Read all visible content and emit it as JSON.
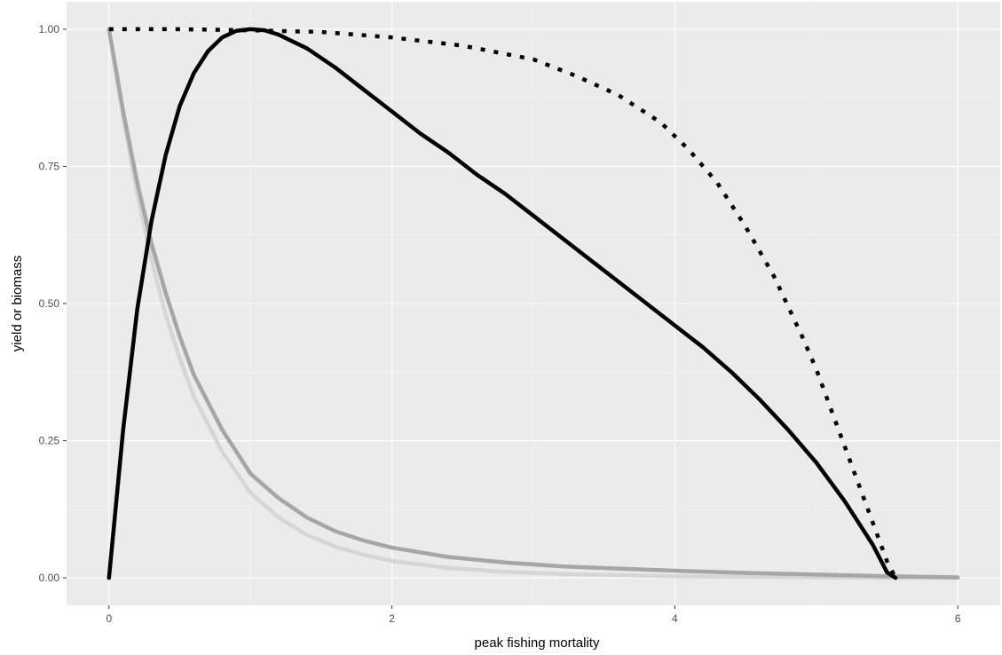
{
  "chart_data": {
    "type": "line",
    "title": "",
    "xlabel": "peak fishing mortality",
    "ylabel": "yield or biomass",
    "xlim": [
      -0.3,
      6.3
    ],
    "ylim": [
      -0.05,
      1.05
    ],
    "x_ticks": [
      0,
      2,
      4,
      6
    ],
    "x_tick_labels": [
      "0",
      "2",
      "4",
      "6"
    ],
    "y_ticks": [
      0,
      0.25,
      0.5,
      0.75,
      1
    ],
    "y_tick_labels": [
      "0.00",
      "0.25",
      "0.50",
      "0.75",
      "1.00"
    ],
    "grid": true,
    "legend": "none",
    "colors": {
      "panel": "#ebebeb",
      "grid_major": "#ffffff",
      "grid_minor": "#f5f5f5"
    },
    "series": [
      {
        "color": "#000000",
        "style": "solid",
        "x": [
          0,
          0.1,
          0.2,
          0.3,
          0.4,
          0.5,
          0.6,
          0.7,
          0.8,
          0.9,
          1.0,
          1.1,
          1.2,
          1.4,
          1.6,
          1.8,
          2.0,
          2.2,
          2.4,
          2.6,
          2.8,
          3.0,
          3.2,
          3.4,
          3.6,
          3.8,
          4.0,
          4.2,
          4.4,
          4.6,
          4.8,
          5.0,
          5.2,
          5.4,
          5.5,
          5.56
        ],
        "y": [
          0.0,
          0.27,
          0.49,
          0.65,
          0.77,
          0.86,
          0.92,
          0.96,
          0.985,
          0.997,
          1.0,
          0.998,
          0.99,
          0.965,
          0.93,
          0.89,
          0.85,
          0.81,
          0.775,
          0.735,
          0.7,
          0.66,
          0.62,
          0.58,
          0.54,
          0.5,
          0.46,
          0.42,
          0.375,
          0.325,
          0.27,
          0.21,
          0.14,
          0.06,
          0.01,
          0.0
        ]
      },
      {
        "color": "#000000",
        "style": "dotted",
        "x": [
          0,
          0.5,
          1.0,
          1.5,
          2.0,
          2.5,
          3.0,
          3.3,
          3.6,
          3.9,
          4.1,
          4.3,
          4.5,
          4.7,
          4.9,
          5.0,
          5.1,
          5.2,
          5.3,
          5.4,
          5.5,
          5.56
        ],
        "y": [
          1.0,
          1.0,
          0.998,
          0.995,
          0.985,
          0.97,
          0.945,
          0.915,
          0.88,
          0.83,
          0.78,
          0.72,
          0.64,
          0.55,
          0.44,
          0.38,
          0.31,
          0.24,
          0.17,
          0.1,
          0.03,
          0.0
        ]
      },
      {
        "color": "#a6a6a6",
        "style": "solid",
        "x": [
          0,
          0.1,
          0.2,
          0.3,
          0.4,
          0.5,
          0.6,
          0.8,
          1.0,
          1.2,
          1.4,
          1.6,
          1.8,
          2.0,
          2.4,
          2.8,
          3.2,
          3.6,
          4.0,
          4.5,
          5.0,
          5.5,
          6.0
        ],
        "y": [
          1.0,
          0.85,
          0.72,
          0.61,
          0.52,
          0.44,
          0.37,
          0.27,
          0.19,
          0.145,
          0.11,
          0.085,
          0.068,
          0.055,
          0.038,
          0.028,
          0.021,
          0.017,
          0.013,
          0.009,
          0.006,
          0.003,
          0.001
        ]
      },
      {
        "color": "#d6d6d6",
        "style": "solid",
        "x": [
          0,
          0.1,
          0.2,
          0.3,
          0.4,
          0.5,
          0.6,
          0.8,
          1.0,
          1.2,
          1.4,
          1.6,
          1.8,
          2.0,
          2.4,
          2.8,
          3.2,
          3.6,
          4.0,
          4.5,
          5.0,
          5.5,
          6.0
        ],
        "y": [
          1.0,
          0.84,
          0.7,
          0.58,
          0.48,
          0.4,
          0.33,
          0.23,
          0.155,
          0.11,
          0.078,
          0.057,
          0.042,
          0.031,
          0.018,
          0.011,
          0.007,
          0.005,
          0.003,
          0.002,
          0.001,
          0.0,
          0.0
        ]
      }
    ]
  }
}
